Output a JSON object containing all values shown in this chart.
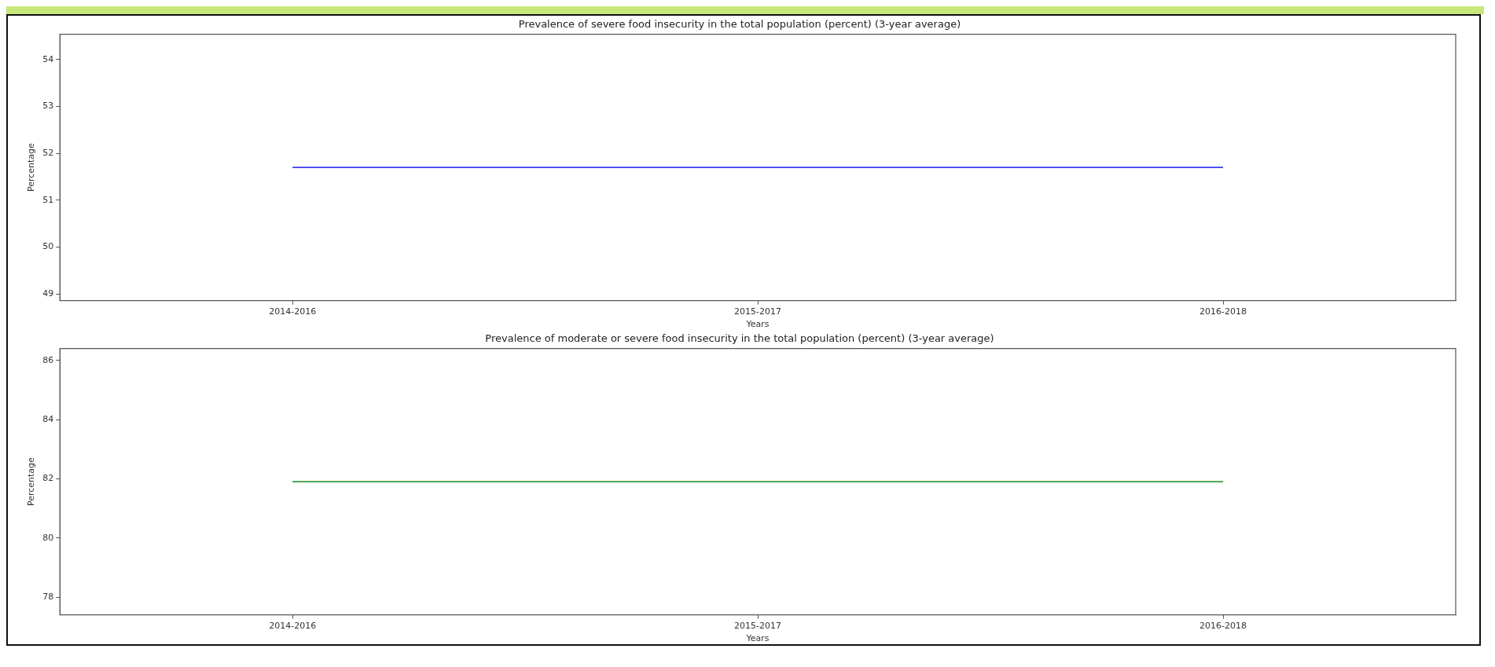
{
  "chart_data": [
    {
      "type": "line",
      "title": "Prevalence of severe food insecurity in the total population (percent) (3-year average)",
      "xlabel": "Years",
      "ylabel": "Percentage",
      "categories": [
        "2014-2016",
        "2015-2017",
        "2016-2018"
      ],
      "series": [
        {
          "color": "#3a3af0",
          "values": [
            51.7,
            51.7,
            51.7
          ]
        }
      ],
      "ylim": [
        48.86,
        54.54
      ],
      "yticks": [
        49,
        50,
        51,
        52,
        53,
        54
      ],
      "marker": "none"
    },
    {
      "type": "line",
      "title": "Prevalence of moderate or severe food insecurity in the total population (percent) (3-year average)",
      "xlabel": "Years",
      "ylabel": "Percentage",
      "categories": [
        "2014-2016",
        "2015-2017",
        "2016-2018"
      ],
      "series": [
        {
          "color": "#3a9a3a",
          "values": [
            81.9,
            81.9,
            81.9
          ]
        }
      ],
      "ylim": [
        77.4,
        86.4
      ],
      "yticks": [
        78,
        80,
        82,
        84,
        86
      ],
      "marker": "none"
    }
  ]
}
